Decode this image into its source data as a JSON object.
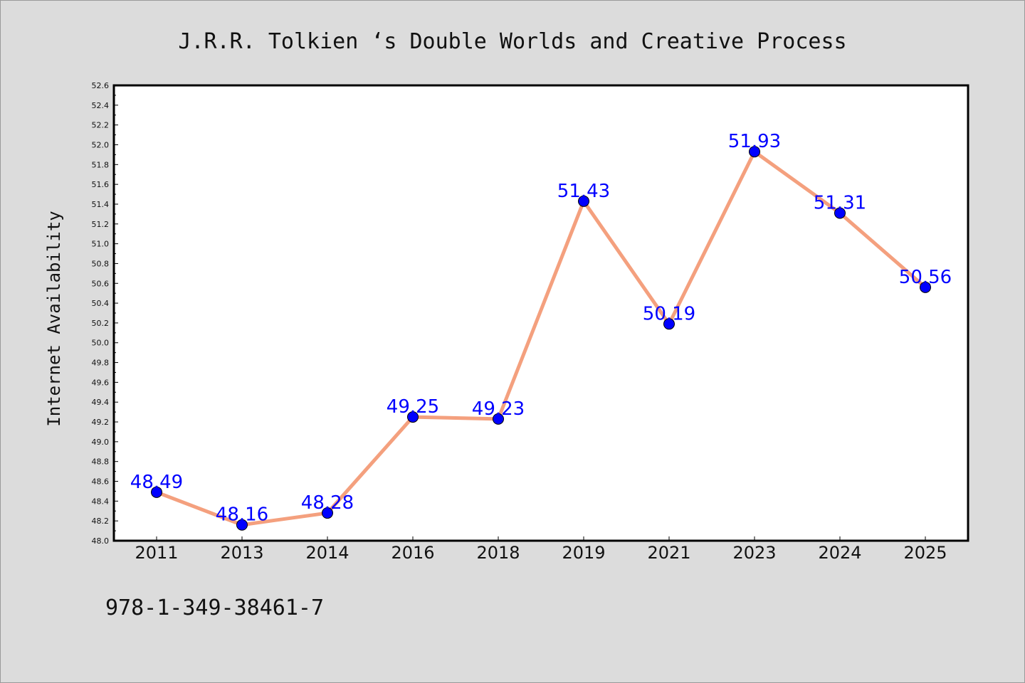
{
  "chart_data": {
    "type": "line",
    "title": "J.R.R. Tolkien ‘s Double Worlds and Creative Process",
    "xlabel": "",
    "ylabel": "Internet Availability",
    "categories": [
      "2011",
      "2013",
      "2014",
      "2016",
      "2018",
      "2019",
      "2021",
      "2023",
      "2024",
      "2025"
    ],
    "values": [
      48.49,
      48.16,
      48.28,
      49.25,
      49.23,
      51.43,
      50.19,
      51.93,
      51.31,
      50.56
    ],
    "data_labels": [
      "48.49",
      "48.16",
      "48.28",
      "49.25",
      "49.23",
      "51.43",
      "50.19",
      "51.93",
      "51.31",
      "50.56"
    ],
    "ylim": [
      48.0,
      52.6
    ],
    "yticks": [
      "48.0",
      "48.2",
      "48.4",
      "48.6",
      "48.8",
      "49.0",
      "49.2",
      "49.4",
      "49.6",
      "49.8",
      "50.0",
      "50.2",
      "50.4",
      "50.6",
      "50.8",
      "51.0",
      "51.2",
      "51.4",
      "51.6",
      "51.8",
      "52.0",
      "52.2",
      "52.4",
      "52.6"
    ],
    "grid": false,
    "legend": "none",
    "line_color": "#f4a07e",
    "marker_color": "#0000ff",
    "label_color": "#0000ff"
  },
  "footer_text": "978-1-349-38461-7"
}
